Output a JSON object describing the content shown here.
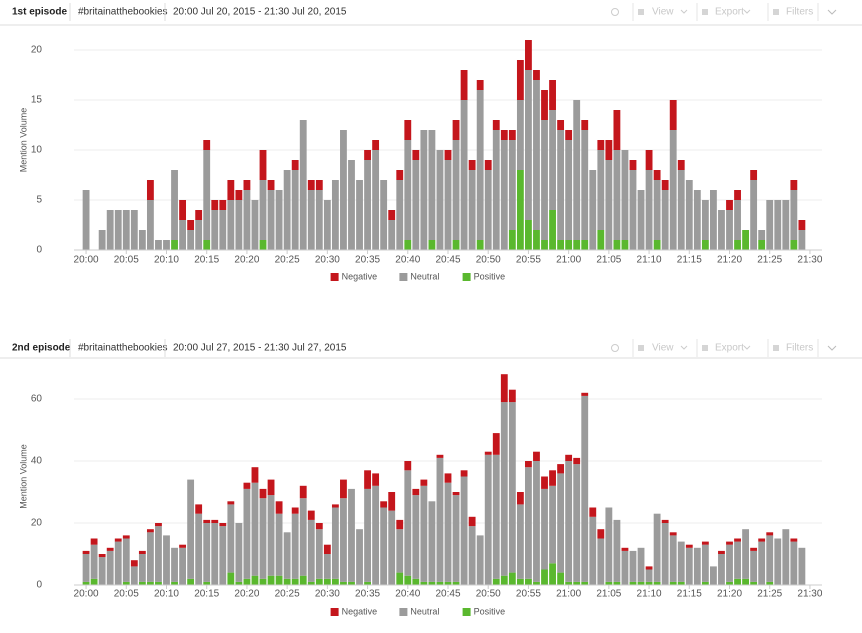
{
  "panels": [
    {
      "title": "1st episode",
      "hashtag": "#britainatthebookies",
      "range": "20:00 Jul 20, 2015 - 21:30 Jul 20, 2015",
      "toolbar": [
        "View",
        "Export",
        "Filters"
      ]
    },
    {
      "title": "2nd episode",
      "hashtag": "#britainatthebookies",
      "range": "20:00 Jul 27, 2015 - 21:30 Jul 27, 2015",
      "toolbar": [
        "View",
        "Export",
        "Filters"
      ]
    }
  ],
  "chart_data": [
    {
      "type": "stacked-bar",
      "y_label": "Mention Volume",
      "x": [
        0,
        1,
        2,
        3,
        4,
        5,
        6,
        7,
        8,
        9,
        10,
        11,
        12,
        13,
        14,
        15,
        16,
        17,
        18,
        19,
        20,
        21,
        22,
        23,
        24,
        25,
        26,
        27,
        28,
        29,
        30,
        31,
        32,
        33,
        34,
        35,
        36,
        37,
        38,
        39,
        40,
        41,
        42,
        43,
        44,
        45,
        46,
        47,
        48,
        49,
        50,
        51,
        52,
        53,
        54,
        55,
        56,
        57,
        58,
        59,
        60,
        61,
        62,
        63,
        64,
        65,
        66,
        67,
        68,
        69,
        70,
        71,
        72,
        73,
        74,
        75,
        76,
        77,
        78,
        79,
        80,
        81,
        82,
        83,
        84,
        85,
        86,
        87,
        88,
        89
      ],
      "xlim": [
        -1.5,
        91.5
      ],
      "xticks": [
        {
          "value": 0,
          "label": "20:00"
        },
        {
          "value": 5,
          "label": "20:05"
        },
        {
          "value": 10,
          "label": "20:10"
        },
        {
          "value": 15,
          "label": "20:15"
        },
        {
          "value": 20,
          "label": "20:20"
        },
        {
          "value": 25,
          "label": "20:25"
        },
        {
          "value": 30,
          "label": "20:30"
        },
        {
          "value": 35,
          "label": "20:35"
        },
        {
          "value": 40,
          "label": "20:40"
        },
        {
          "value": 45,
          "label": "20:45"
        },
        {
          "value": 50,
          "label": "20:50"
        },
        {
          "value": 55,
          "label": "20:55"
        },
        {
          "value": 60,
          "label": "21:00"
        },
        {
          "value": 65,
          "label": "21:05"
        },
        {
          "value": 70,
          "label": "21:10"
        },
        {
          "value": 75,
          "label": "21:15"
        },
        {
          "value": 80,
          "label": "21:20"
        },
        {
          "value": 85,
          "label": "21:25"
        },
        {
          "value": 90,
          "label": "21:30"
        }
      ],
      "ylim": [
        0,
        22
      ],
      "yticks": [
        0,
        5,
        10,
        15,
        20
      ],
      "grid": true,
      "legend": "bottom",
      "stack_order": [
        2,
        1,
        0
      ],
      "series": [
        {
          "name": "Negative",
          "color": "#c4161c",
          "values": [
            0,
            0,
            0,
            0,
            0,
            0,
            0,
            0,
            2,
            0,
            0,
            0,
            2,
            1,
            1,
            1,
            1,
            1,
            2,
            1,
            1,
            0,
            3,
            1,
            0,
            0,
            1,
            0,
            1,
            1,
            0,
            0,
            0,
            0,
            0,
            1,
            1,
            0,
            1,
            1,
            2,
            1,
            0,
            0,
            0,
            1,
            2,
            3,
            1,
            1,
            1,
            1,
            1,
            1,
            4,
            3,
            1,
            3,
            3,
            1,
            1,
            0,
            1,
            0,
            1,
            2,
            4,
            0,
            1,
            0,
            2,
            1,
            1,
            3,
            1,
            0,
            0,
            0,
            0,
            0,
            1,
            1,
            0,
            1,
            0,
            0,
            0,
            0,
            1,
            1
          ]
        },
        {
          "name": "Neutral",
          "color": "#9b9b9b",
          "values": [
            6,
            0,
            2,
            4,
            4,
            4,
            4,
            2,
            5,
            1,
            1,
            7,
            3,
            2,
            3,
            9,
            4,
            4,
            5,
            5,
            6,
            5,
            6,
            6,
            6,
            8,
            8,
            13,
            6,
            6,
            5,
            7,
            12,
            9,
            7,
            9,
            10,
            7,
            3,
            7,
            10,
            9,
            12,
            11,
            10,
            9,
            10,
            15,
            8,
            15,
            8,
            12,
            11,
            9,
            7,
            15,
            15,
            12,
            10,
            11,
            10,
            14,
            11,
            8,
            8,
            9,
            9,
            9,
            8,
            6,
            8,
            6,
            6,
            12,
            8,
            7,
            6,
            4,
            6,
            4,
            4,
            4,
            0,
            7,
            1,
            5,
            5,
            5,
            5,
            2
          ]
        },
        {
          "name": "Positive",
          "color": "#5ab82e",
          "values": [
            0,
            0,
            0,
            0,
            0,
            0,
            0,
            0,
            0,
            0,
            0,
            1,
            0,
            0,
            0,
            1,
            0,
            0,
            0,
            0,
            0,
            0,
            1,
            0,
            0,
            0,
            0,
            0,
            0,
            0,
            0,
            0,
            0,
            0,
            0,
            0,
            0,
            0,
            0,
            0,
            1,
            0,
            0,
            1,
            0,
            0,
            1,
            0,
            0,
            1,
            0,
            0,
            0,
            2,
            8,
            3,
            2,
            1,
            4,
            1,
            1,
            1,
            1,
            0,
            2,
            0,
            1,
            1,
            0,
            0,
            0,
            1,
            0,
            0,
            0,
            0,
            0,
            1,
            0,
            0,
            0,
            1,
            2,
            0,
            1,
            0,
            0,
            0,
            1,
            0
          ]
        }
      ]
    },
    {
      "type": "stacked-bar",
      "y_label": "Mention Volume",
      "x": [
        0,
        1,
        2,
        3,
        4,
        5,
        6,
        7,
        8,
        9,
        10,
        11,
        12,
        13,
        14,
        15,
        16,
        17,
        18,
        19,
        20,
        21,
        22,
        23,
        24,
        25,
        26,
        27,
        28,
        29,
        30,
        31,
        32,
        33,
        34,
        35,
        36,
        37,
        38,
        39,
        40,
        41,
        42,
        43,
        44,
        45,
        46,
        47,
        48,
        49,
        50,
        51,
        52,
        53,
        54,
        55,
        56,
        57,
        58,
        59,
        60,
        61,
        62,
        63,
        64,
        65,
        66,
        67,
        68,
        69,
        70,
        71,
        72,
        73,
        74,
        75,
        76,
        77,
        78,
        79,
        80,
        81,
        82,
        83,
        84,
        85,
        86,
        87,
        88,
        89
      ],
      "xlim": [
        -1.5,
        91.5
      ],
      "xticks": [
        {
          "value": 0,
          "label": "20:00"
        },
        {
          "value": 5,
          "label": "20:05"
        },
        {
          "value": 10,
          "label": "20:10"
        },
        {
          "value": 15,
          "label": "20:15"
        },
        {
          "value": 20,
          "label": "20:20"
        },
        {
          "value": 25,
          "label": "20:25"
        },
        {
          "value": 30,
          "label": "20:30"
        },
        {
          "value": 35,
          "label": "20:35"
        },
        {
          "value": 40,
          "label": "20:40"
        },
        {
          "value": 45,
          "label": "20:45"
        },
        {
          "value": 50,
          "label": "20:50"
        },
        {
          "value": 55,
          "label": "20:55"
        },
        {
          "value": 60,
          "label": "21:00"
        },
        {
          "value": 65,
          "label": "21:05"
        },
        {
          "value": 70,
          "label": "21:10"
        },
        {
          "value": 75,
          "label": "21:15"
        },
        {
          "value": 80,
          "label": "21:20"
        },
        {
          "value": 85,
          "label": "21:25"
        },
        {
          "value": 90,
          "label": "21:30"
        }
      ],
      "ylim": [
        0,
        70
      ],
      "yticks": [
        0,
        20,
        40,
        60
      ],
      "grid": true,
      "legend": "bottom",
      "stack_order": [
        2,
        1,
        0
      ],
      "series": [
        {
          "name": "Negative",
          "color": "#c4161c",
          "values": [
            1,
            2,
            1,
            1,
            1,
            1,
            2,
            1,
            1,
            1,
            0,
            0,
            1,
            0,
            3,
            1,
            1,
            1,
            1,
            0,
            2,
            5,
            3,
            5,
            4,
            0,
            2,
            4,
            3,
            2,
            3,
            1,
            6,
            0,
            0,
            6,
            4,
            2,
            6,
            3,
            3,
            2,
            2,
            0,
            1,
            3,
            1,
            2,
            3,
            0,
            1,
            7,
            9,
            4,
            4,
            2,
            3,
            4,
            5,
            3,
            2,
            2,
            1,
            3,
            3,
            0,
            0,
            1,
            0,
            0,
            1,
            0,
            1,
            1,
            0,
            1,
            0,
            1,
            0,
            1,
            1,
            1,
            0,
            1,
            1,
            1,
            0,
            0,
            1,
            0
          ]
        },
        {
          "name": "Neutral",
          "color": "#9b9b9b",
          "values": [
            9,
            11,
            9,
            11,
            14,
            14,
            6,
            9,
            16,
            18,
            16,
            11,
            12,
            32,
            23,
            19,
            20,
            19,
            22,
            19,
            29,
            30,
            26,
            26,
            20,
            15,
            21,
            25,
            20,
            16,
            8,
            23,
            27,
            30,
            18,
            30,
            32,
            25,
            24,
            14,
            34,
            27,
            31,
            26,
            40,
            32,
            28,
            35,
            19,
            16,
            42,
            40,
            56,
            55,
            24,
            36,
            39,
            26,
            25,
            32,
            39,
            38,
            60,
            22,
            15,
            24,
            20,
            11,
            10,
            11,
            4,
            22,
            20,
            15,
            13,
            12,
            12,
            12,
            6,
            10,
            12,
            12,
            16,
            10,
            14,
            15,
            15,
            18,
            14,
            12
          ]
        },
        {
          "name": "Positive",
          "color": "#5ab82e",
          "values": [
            1,
            2,
            0,
            0,
            0,
            1,
            0,
            1,
            1,
            1,
            0,
            1,
            0,
            2,
            0,
            1,
            0,
            0,
            4,
            1,
            2,
            3,
            2,
            3,
            3,
            2,
            2,
            3,
            1,
            2,
            2,
            2,
            1,
            1,
            0,
            1,
            0,
            0,
            0,
            4,
            3,
            2,
            1,
            1,
            1,
            1,
            1,
            0,
            0,
            0,
            0,
            2,
            3,
            4,
            2,
            2,
            1,
            5,
            7,
            4,
            1,
            1,
            1,
            0,
            0,
            1,
            1,
            0,
            1,
            1,
            1,
            1,
            0,
            1,
            1,
            0,
            0,
            1,
            0,
            0,
            1,
            2,
            2,
            1,
            0,
            1,
            0,
            0,
            0,
            0
          ]
        }
      ]
    }
  ]
}
